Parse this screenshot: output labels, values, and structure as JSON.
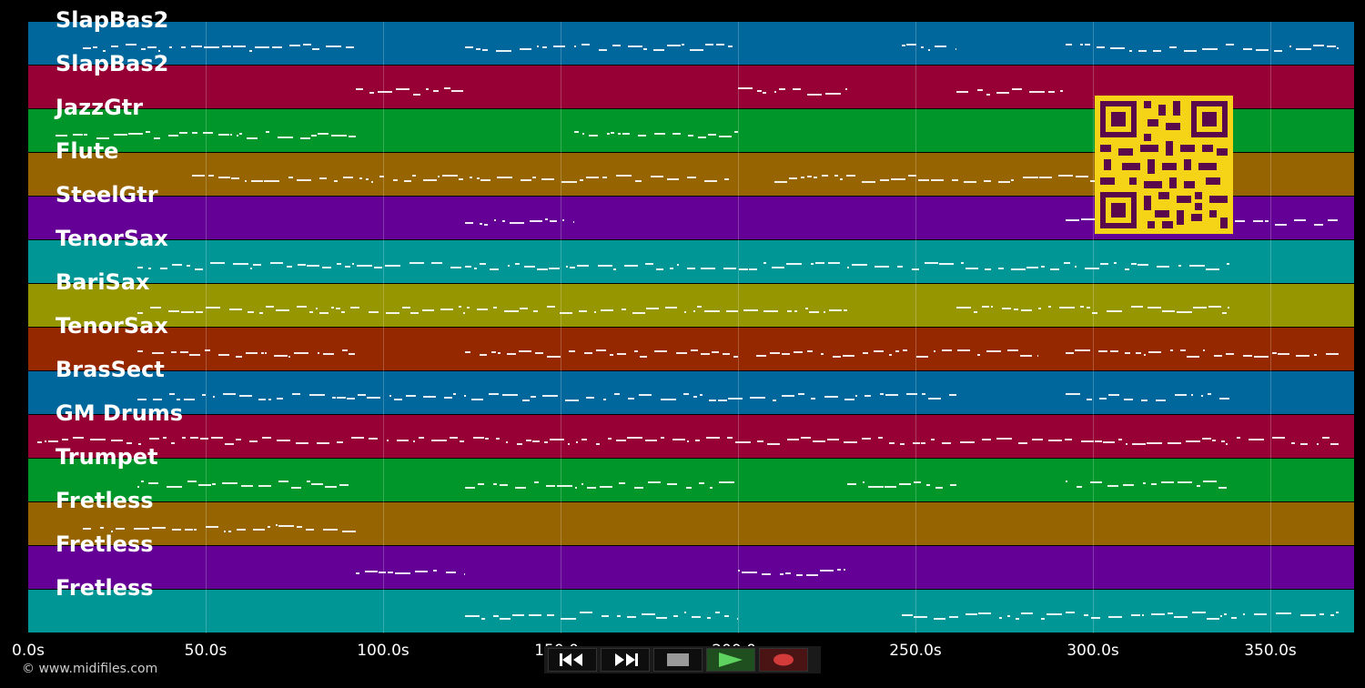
{
  "tracks": [
    {
      "name": "SlapBas2",
      "color": "#00679c"
    },
    {
      "name": "SlapBas2",
      "color": "#960034"
    },
    {
      "name": "JazzGtr",
      "color": "#00962a"
    },
    {
      "name": "Flute",
      "color": "#966400"
    },
    {
      "name": "SteelGtr",
      "color": "#640096"
    },
    {
      "name": "TenorSax",
      "color": "#009696"
    },
    {
      "name": "BariSax",
      "color": "#969600"
    },
    {
      "name": "TenorSax",
      "color": "#962800"
    },
    {
      "name": "BrasSect",
      "color": "#00679c"
    },
    {
      "name": "GM Drums",
      "color": "#960034"
    },
    {
      "name": "Trumpet",
      "color": "#00962a"
    },
    {
      "name": "Fretless",
      "color": "#966400"
    },
    {
      "name": "Fretless",
      "color": "#640096"
    },
    {
      "name": "Fretless",
      "color": "#009696"
    }
  ],
  "timeline": {
    "ticks": [
      "0.0s",
      "50.0s",
      "100.0s",
      "150.0s",
      "200.0s",
      "250.0s",
      "300.0s",
      "350.0s"
    ]
  },
  "copyright": "© www.midifiles.com",
  "transport": {
    "rewind_icon": "rewind-icon",
    "forward_icon": "fast-forward-icon",
    "stop_icon": "stop-icon",
    "play_icon": "play-icon",
    "record_icon": "record-icon"
  },
  "colors": {
    "qr_fg": "#5a0a4a",
    "qr_bg": "#f5d418",
    "play": "#5fd35f",
    "record": "#d33a3a",
    "stop": "#999999"
  }
}
